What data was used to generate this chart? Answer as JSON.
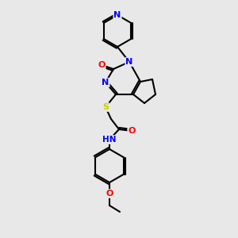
{
  "background_color": "#e8e8e8",
  "bond_color": "#000000",
  "atom_colors": {
    "N": "#0000FF",
    "O": "#FF0000",
    "S": "#CCCC00",
    "H": "#708090",
    "C": "#000000"
  },
  "figure_size": [
    3.0,
    3.0
  ],
  "dpi": 100
}
